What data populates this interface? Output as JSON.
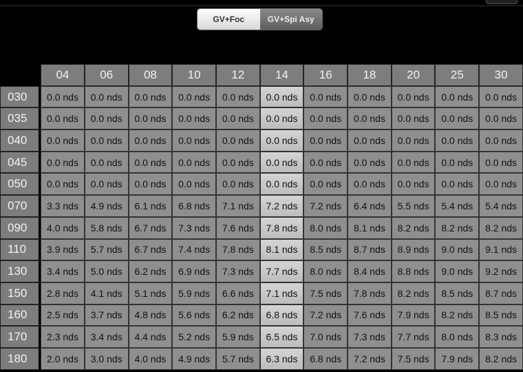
{
  "segmented_control": {
    "options": [
      "GV+Foc",
      "GV+Spi Asy"
    ],
    "selected": "GV+Foc"
  },
  "table": {
    "highlight_column": "14",
    "columns": [
      "04",
      "06",
      "08",
      "10",
      "12",
      "14",
      "16",
      "18",
      "20",
      "25",
      "30"
    ],
    "rows": [
      {
        "label": "030",
        "values": [
          "0.0 nds",
          "0.0 nds",
          "0.0 nds",
          "0.0 nds",
          "0.0 nds",
          "0.0 nds",
          "0.0 nds",
          "0.0 nds",
          "0.0 nds",
          "0.0 nds",
          "0.0 nds"
        ]
      },
      {
        "label": "035",
        "values": [
          "0.0 nds",
          "0.0 nds",
          "0.0 nds",
          "0.0 nds",
          "0.0 nds",
          "0.0 nds",
          "0.0 nds",
          "0.0 nds",
          "0.0 nds",
          "0.0 nds",
          "0.0 nds"
        ]
      },
      {
        "label": "040",
        "values": [
          "0.0 nds",
          "0.0 nds",
          "0.0 nds",
          "0.0 nds",
          "0.0 nds",
          "0.0 nds",
          "0.0 nds",
          "0.0 nds",
          "0.0 nds",
          "0.0 nds",
          "0.0 nds"
        ]
      },
      {
        "label": "045",
        "values": [
          "0.0 nds",
          "0.0 nds",
          "0.0 nds",
          "0.0 nds",
          "0.0 nds",
          "0.0 nds",
          "0.0 nds",
          "0.0 nds",
          "0.0 nds",
          "0.0 nds",
          "0.0 nds"
        ]
      },
      {
        "label": "050",
        "values": [
          "0.0 nds",
          "0.0 nds",
          "0.0 nds",
          "0.0 nds",
          "0.0 nds",
          "0.0 nds",
          "0.0 nds",
          "0.0 nds",
          "0.0 nds",
          "0.0 nds",
          "0.0 nds"
        ]
      },
      {
        "label": "070",
        "values": [
          "3.3 nds",
          "4.9 nds",
          "6.1 nds",
          "6.8 nds",
          "7.1 nds",
          "7.2 nds",
          "7.2 nds",
          "6.4 nds",
          "5.5 nds",
          "5.4 nds",
          "5.4 nds"
        ]
      },
      {
        "label": "090",
        "values": [
          "4.0 nds",
          "5.8 nds",
          "6.7 nds",
          "7.3 nds",
          "7.6 nds",
          "7.8 nds",
          "8.0 nds",
          "8.1 nds",
          "8.2 nds",
          "8.2 nds",
          "8.2 nds"
        ]
      },
      {
        "label": "110",
        "values": [
          "3.9 nds",
          "5.7 nds",
          "6.7 nds",
          "7.4 nds",
          "7.8 nds",
          "8.1 nds",
          "8.5 nds",
          "8.7 nds",
          "8.9 nds",
          "9.0 nds",
          "9.1 nds"
        ]
      },
      {
        "label": "130",
        "values": [
          "3.4 nds",
          "5.0 nds",
          "6.2 nds",
          "6.9 nds",
          "7.3 nds",
          "7.7 nds",
          "8.0 nds",
          "8.4 nds",
          "8.8 nds",
          "9.0 nds",
          "9.2 nds"
        ]
      },
      {
        "label": "150",
        "values": [
          "2.8 nds",
          "4.1 nds",
          "5.1 nds",
          "5.9 nds",
          "6.6 nds",
          "7.1 nds",
          "7.5 nds",
          "7.8 nds",
          "8.2 nds",
          "8.5 nds",
          "8.7 nds"
        ]
      },
      {
        "label": "160",
        "values": [
          "2.5 nds",
          "3.7 nds",
          "4.8 nds",
          "5.6 nds",
          "6.2 nds",
          "6.8 nds",
          "7.2 nds",
          "7.6 nds",
          "7.9 nds",
          "8.2 nds",
          "8.5 nds"
        ]
      },
      {
        "label": "170",
        "values": [
          "2.3 nds",
          "3.4 nds",
          "4.4 nds",
          "5.2 nds",
          "5.9 nds",
          "6.5 nds",
          "7.0 nds",
          "7.3 nds",
          "7.7 nds",
          "8.0 nds",
          "8.3 nds"
        ]
      },
      {
        "label": "180",
        "values": [
          "2.0 nds",
          "3.0 nds",
          "4.0 nds",
          "4.9 nds",
          "5.7 nds",
          "6.3 nds",
          "6.8 nds",
          "7.2 nds",
          "7.5 nds",
          "7.9 nds",
          "8.2 nds"
        ]
      }
    ]
  }
}
